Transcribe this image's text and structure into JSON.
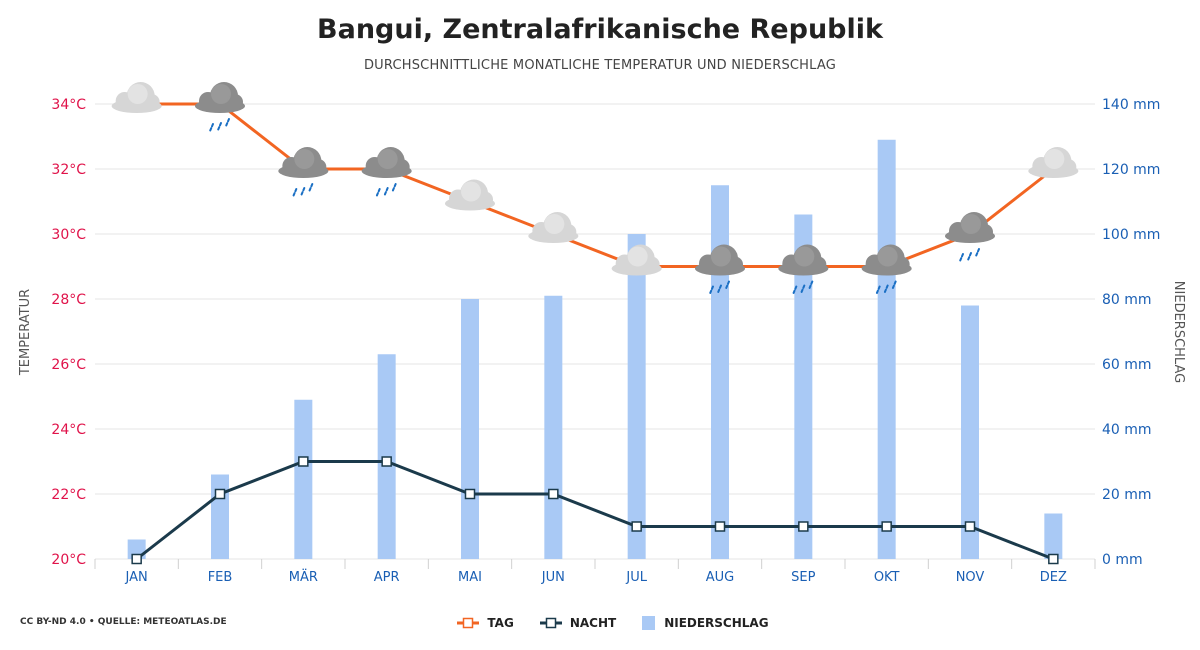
{
  "header": {
    "title": "Bangui, Zentralafrikanische Republik",
    "subtitle": "DURCHSCHNITTLICHE MONATLICHE TEMPERATUR UND NIEDERSCHLAG"
  },
  "footer": {
    "credit": "CC BY-ND 4.0 • QUELLE: METEOATLAS.DE"
  },
  "legend": {
    "day": "TAG",
    "night": "NACHT",
    "precip": "NIEDERSCHLAG"
  },
  "colors": {
    "day": "#f26522",
    "night": "#1b3a4b",
    "precip": "#a9c9f5",
    "temp_axis": "#e0134a",
    "precip_axis": "#1a5fb4",
    "grid": "#e6e6e6",
    "cloud_light": "#d6d6d6",
    "cloud_dark": "#8c8c8c",
    "rain": "#1a6fc4"
  },
  "chart_data": {
    "type": "bar",
    "categories": [
      "JAN",
      "FEB",
      "MÄR",
      "APR",
      "MAI",
      "JUN",
      "JUL",
      "AUG",
      "SEP",
      "OKT",
      "NOV",
      "DEZ"
    ],
    "series": [
      {
        "name": "TAG",
        "type": "line",
        "axis": "temperature",
        "values": [
          34,
          34,
          32,
          32,
          31,
          30,
          29,
          29,
          29,
          29,
          30,
          32
        ]
      },
      {
        "name": "NACHT",
        "type": "line",
        "axis": "temperature",
        "values": [
          20,
          22,
          23,
          23,
          22,
          22,
          21,
          21,
          21,
          21,
          21,
          20
        ]
      },
      {
        "name": "NIEDERSCHLAG",
        "type": "bar",
        "axis": "precipitation",
        "values": [
          6,
          26,
          49,
          63,
          80,
          81,
          100,
          115,
          106,
          129,
          78,
          14
        ]
      }
    ],
    "weather_icons": [
      "cloud-light",
      "cloud-rain",
      "cloud-rain",
      "cloud-rain",
      "cloud-light",
      "cloud-light",
      "cloud-light",
      "cloud-rain",
      "cloud-rain",
      "cloud-rain",
      "cloud-rain",
      "cloud-light"
    ],
    "y_left": {
      "label": "TEMPERATUR",
      "range": [
        20,
        34
      ],
      "ticks": [
        "20°C",
        "22°C",
        "24°C",
        "26°C",
        "28°C",
        "30°C",
        "32°C",
        "34°C"
      ]
    },
    "y_right": {
      "label": "NIEDERSCHLAG",
      "range": [
        0,
        140
      ],
      "ticks": [
        "0 mm",
        "20 mm",
        "40 mm",
        "60 mm",
        "80 mm",
        "100 mm",
        "120 mm",
        "140 mm"
      ]
    },
    "grid": true,
    "legend_position": "bottom-center"
  }
}
